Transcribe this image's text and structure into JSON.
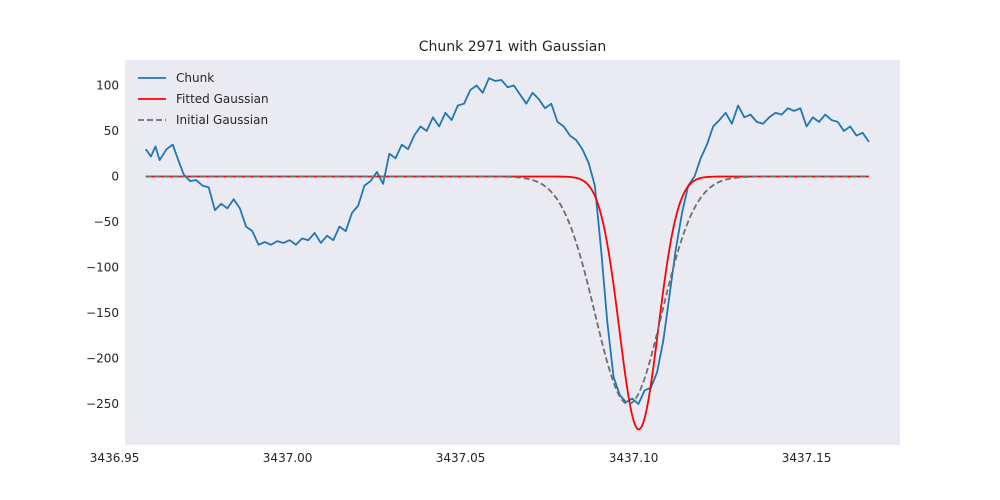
{
  "chart_data": {
    "type": "line",
    "title": "Chunk 2971 with Gaussian",
    "xlabel": "",
    "ylabel": "",
    "xlim": [
      3436.953,
      3437.177
    ],
    "ylim": [
      -295,
      128
    ],
    "xticks": [
      3436.95,
      3437.0,
      3437.05,
      3437.1,
      3437.15
    ],
    "xtick_labels": [
      "3436.95",
      "3437.00",
      "3437.05",
      "3437.10",
      "3437.15"
    ],
    "yticks": [
      100,
      50,
      0,
      -50,
      -100,
      -150,
      -200,
      -250
    ],
    "ytick_labels": [
      "100",
      "50",
      "0",
      "−50",
      "−100",
      "−150",
      "−200",
      "−250"
    ],
    "grid": false,
    "legend_position": "top-left",
    "background_color": "#eaeaf2",
    "series": [
      {
        "name": "Chunk",
        "color": "#1f77b4",
        "style": "solid",
        "points": [
          [
            3436.959,
            30
          ],
          [
            3436.9605,
            22
          ],
          [
            3436.9618,
            33
          ],
          [
            3436.963,
            18
          ],
          [
            3436.965,
            30
          ],
          [
            3436.9668,
            35
          ],
          [
            3436.9685,
            17
          ],
          [
            3436.97,
            2
          ],
          [
            3436.9718,
            -5
          ],
          [
            3436.9736,
            -4
          ],
          [
            3436.9754,
            -10
          ],
          [
            3436.9772,
            -12
          ],
          [
            3436.979,
            -37
          ],
          [
            3436.9808,
            -30
          ],
          [
            3436.9826,
            -35
          ],
          [
            3436.9844,
            -25
          ],
          [
            3436.9862,
            -35
          ],
          [
            3436.988,
            -55
          ],
          [
            3436.9898,
            -60
          ],
          [
            3436.9916,
            -75
          ],
          [
            3436.9934,
            -72
          ],
          [
            3436.9952,
            -75
          ],
          [
            3436.997,
            -71
          ],
          [
            3436.9988,
            -73
          ],
          [
            3437.0006,
            -70
          ],
          [
            3437.0024,
            -75
          ],
          [
            3437.0042,
            -68
          ],
          [
            3437.006,
            -70
          ],
          [
            3437.0078,
            -62
          ],
          [
            3437.0096,
            -73
          ],
          [
            3437.0114,
            -65
          ],
          [
            3437.0132,
            -70
          ],
          [
            3437.015,
            -55
          ],
          [
            3437.0168,
            -60
          ],
          [
            3437.0186,
            -40
          ],
          [
            3437.0204,
            -32
          ],
          [
            3437.0222,
            -10
          ],
          [
            3437.024,
            -5
          ],
          [
            3437.0258,
            5
          ],
          [
            3437.0276,
            -8
          ],
          [
            3437.0294,
            25
          ],
          [
            3437.0312,
            20
          ],
          [
            3437.033,
            35
          ],
          [
            3437.0348,
            30
          ],
          [
            3437.0366,
            45
          ],
          [
            3437.0384,
            55
          ],
          [
            3437.0402,
            50
          ],
          [
            3437.042,
            65
          ],
          [
            3437.0438,
            55
          ],
          [
            3437.0456,
            70
          ],
          [
            3437.0474,
            62
          ],
          [
            3437.0492,
            78
          ],
          [
            3437.051,
            80
          ],
          [
            3437.0528,
            95
          ],
          [
            3437.0546,
            100
          ],
          [
            3437.0564,
            92
          ],
          [
            3437.0582,
            108
          ],
          [
            3437.06,
            105
          ],
          [
            3437.0618,
            106
          ],
          [
            3437.0636,
            98
          ],
          [
            3437.0654,
            100
          ],
          [
            3437.0672,
            90
          ],
          [
            3437.069,
            80
          ],
          [
            3437.0708,
            92
          ],
          [
            3437.0726,
            85
          ],
          [
            3437.0744,
            75
          ],
          [
            3437.0762,
            80
          ],
          [
            3437.078,
            60
          ],
          [
            3437.0798,
            55
          ],
          [
            3437.0816,
            45
          ],
          [
            3437.0834,
            40
          ],
          [
            3437.0852,
            30
          ],
          [
            3437.087,
            15
          ],
          [
            3437.0888,
            -10
          ],
          [
            3437.0906,
            -80
          ],
          [
            3437.0924,
            -160
          ],
          [
            3437.0942,
            -220
          ],
          [
            3437.096,
            -240
          ],
          [
            3437.0978,
            -248
          ],
          [
            3437.0996,
            -244
          ],
          [
            3437.1014,
            -250
          ],
          [
            3437.1032,
            -235
          ],
          [
            3437.105,
            -232
          ],
          [
            3437.1068,
            -215
          ],
          [
            3437.1086,
            -180
          ],
          [
            3437.1104,
            -130
          ],
          [
            3437.1122,
            -80
          ],
          [
            3437.114,
            -40
          ],
          [
            3437.1158,
            -10
          ],
          [
            3437.1176,
            0
          ],
          [
            3437.1194,
            20
          ],
          [
            3437.1212,
            35
          ],
          [
            3437.123,
            55
          ],
          [
            3437.1248,
            62
          ],
          [
            3437.1266,
            70
          ],
          [
            3437.1284,
            58
          ],
          [
            3437.1302,
            78
          ],
          [
            3437.132,
            65
          ],
          [
            3437.1338,
            68
          ],
          [
            3437.1356,
            60
          ],
          [
            3437.1374,
            58
          ],
          [
            3437.1392,
            65
          ],
          [
            3437.141,
            70
          ],
          [
            3437.1428,
            68
          ],
          [
            3437.1446,
            75
          ],
          [
            3437.1464,
            72
          ],
          [
            3437.1482,
            75
          ],
          [
            3437.15,
            55
          ],
          [
            3437.1518,
            65
          ],
          [
            3437.1536,
            60
          ],
          [
            3437.1554,
            68
          ],
          [
            3437.1572,
            62
          ],
          [
            3437.159,
            60
          ],
          [
            3437.1608,
            50
          ],
          [
            3437.1626,
            55
          ],
          [
            3437.1644,
            45
          ],
          [
            3437.1662,
            48
          ],
          [
            3437.168,
            38
          ]
        ]
      },
      {
        "name": "Fitted Gaussian",
        "color": "#ff0000",
        "style": "solid",
        "gaussian": {
          "amplitude": -278,
          "center": 3437.1015,
          "sigma": 0.0056,
          "x_start": 3436.959,
          "x_end": 3437.168
        }
      },
      {
        "name": "Initial Gaussian",
        "color": "#6e6e6e",
        "style": "dashed",
        "gaussian": {
          "amplitude": -250,
          "center": 3437.0985,
          "sigma": 0.0096,
          "x_start": 3436.959,
          "x_end": 3437.168
        }
      }
    ]
  }
}
